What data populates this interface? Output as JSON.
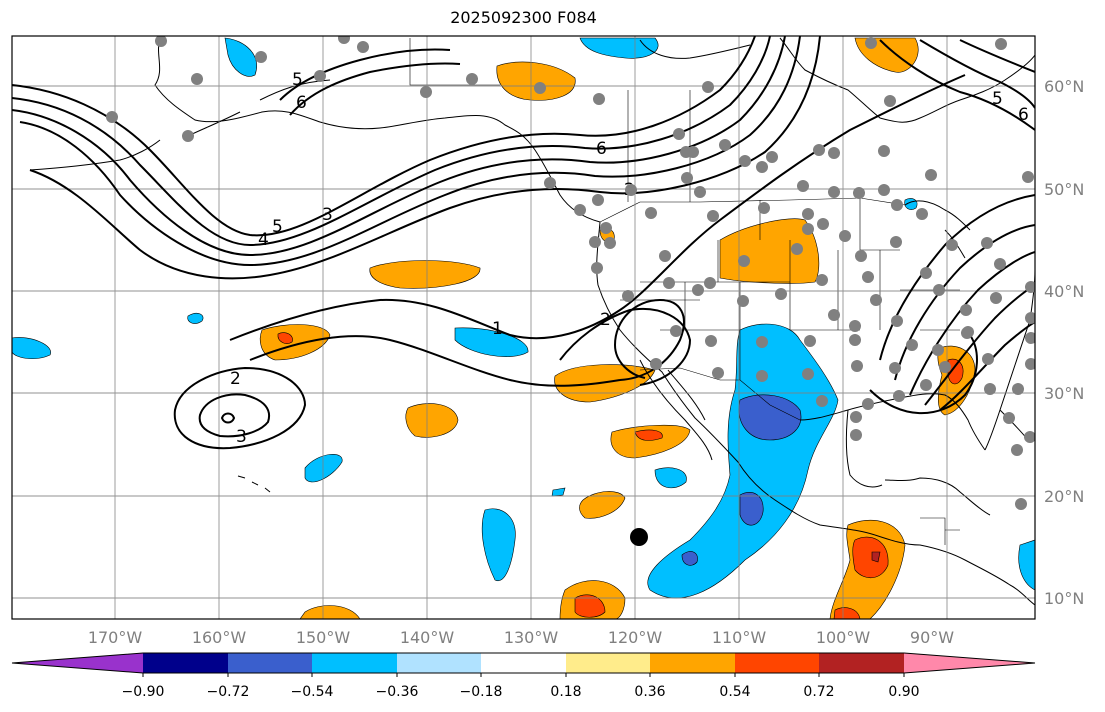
{
  "title": "2025092300 F084",
  "map": {
    "projection": "PlateCarree",
    "lon_range": [
      -180,
      -82
    ],
    "lat_range": [
      8,
      65
    ],
    "grid": true,
    "lon_ticks": [
      "170°W",
      "160°W",
      "150°W",
      "140°W",
      "130°W",
      "120°W",
      "110°W",
      "100°W",
      "90°W"
    ],
    "lat_ticks": [
      "60°N",
      "50°N",
      "40°N",
      "30°N",
      "20°N",
      "10°N"
    ],
    "contour_labels": [
      "6",
      "2",
      "3",
      "4",
      "5",
      "1",
      "2",
      "3",
      "5",
      "6",
      "5",
      "6",
      "2"
    ],
    "marker": "black-dot",
    "station-dots-color": "#808080"
  },
  "colorbar": {
    "orientation": "horizontal",
    "extend": "both",
    "colors": [
      "#9932cc",
      "#00008b",
      "#3a5fcd",
      "#00bfff",
      "#b0e2ff",
      "#ffffff",
      "#ffec8b",
      "#ffa500",
      "#ff4500",
      "#b22222",
      "#ff88aa"
    ],
    "tick_labels": [
      "−0.90",
      "−0.72",
      "−0.54",
      "−0.36",
      "−0.18",
      "0.18",
      "0.36",
      "0.54",
      "0.72",
      "0.90"
    ]
  }
}
